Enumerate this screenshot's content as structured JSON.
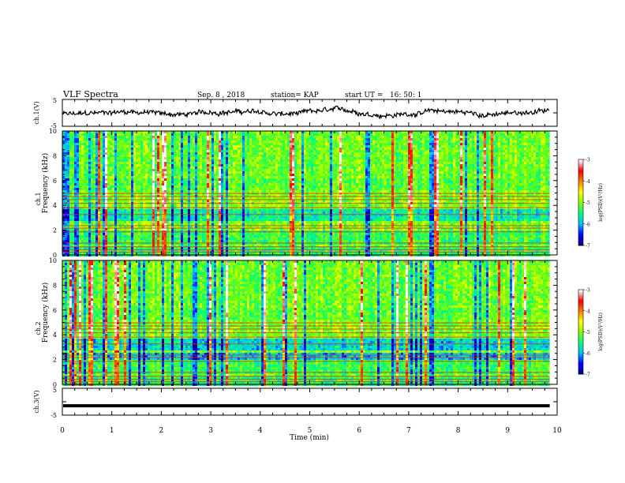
{
  "header": {
    "title": "VLF Spectra",
    "date": "Sep. 8 , 2018",
    "station": "station= KAP",
    "start": "start UT =   16: 50: 1"
  },
  "chart_data": [
    {
      "type": "line",
      "name": "ch1-waveform",
      "ylabel": "ch.1(V)",
      "ylim": [
        -5,
        5
      ],
      "yticks": [
        "5",
        "-5"
      ],
      "x_range": [
        0,
        9.85
      ],
      "description_values": "noisy waveform centred near 0 V"
    },
    {
      "type": "heatmap",
      "name": "ch1-spectrogram",
      "ylabel": "ch.1\nFrequency (kHz)",
      "ylim": [
        0,
        10
      ],
      "yticks": [
        "0",
        "2",
        "4",
        "6",
        "8",
        "10"
      ],
      "x_range": [
        0,
        9.85
      ],
      "colorbar": {
        "label": "log(PSD)(V²/Hz)",
        "range": [
          -7,
          -3
        ],
        "ticks": [
          "-3",
          "-4",
          "-5",
          "-6",
          "-7"
        ],
        "colormap": [
          "#00007f",
          "#0000ff",
          "#00bfff",
          "#00ff7f",
          "#7fff00",
          "#ffff00",
          "#ff7f00",
          "#ff0000",
          "#ffffff"
        ]
      }
    },
    {
      "type": "heatmap",
      "name": "ch2-spectrogram",
      "ylabel": "ch.2\nFrequency (kHz)",
      "ylim": [
        0,
        10
      ],
      "yticks": [
        "0",
        "2",
        "4",
        "6",
        "8",
        "10"
      ],
      "x_range": [
        0,
        9.85
      ],
      "colorbar": {
        "label": "log(PSD)(V²/Hz)",
        "range": [
          -7,
          -3
        ],
        "ticks": [
          "-3",
          "-4",
          "-5",
          "-6",
          "-7"
        ],
        "colormap": [
          "#00007f",
          "#0000ff",
          "#00bfff",
          "#00ff7f",
          "#7fff00",
          "#ffff00",
          "#ff7f00",
          "#ff0000",
          "#ffffff"
        ]
      }
    },
    {
      "type": "line",
      "name": "ch3-waveform",
      "ylabel": "ch.3(V)",
      "ylim": [
        -5,
        5
      ],
      "yticks": [
        "5",
        "-5"
      ],
      "x_range": [
        0,
        9.85
      ],
      "values_constant": -1.5
    }
  ],
  "xaxis": {
    "label": "Time (min)",
    "range": [
      0,
      10
    ],
    "ticks": [
      "0",
      "1",
      "2",
      "3",
      "4",
      "5",
      "6",
      "7",
      "8",
      "9",
      "10"
    ]
  }
}
